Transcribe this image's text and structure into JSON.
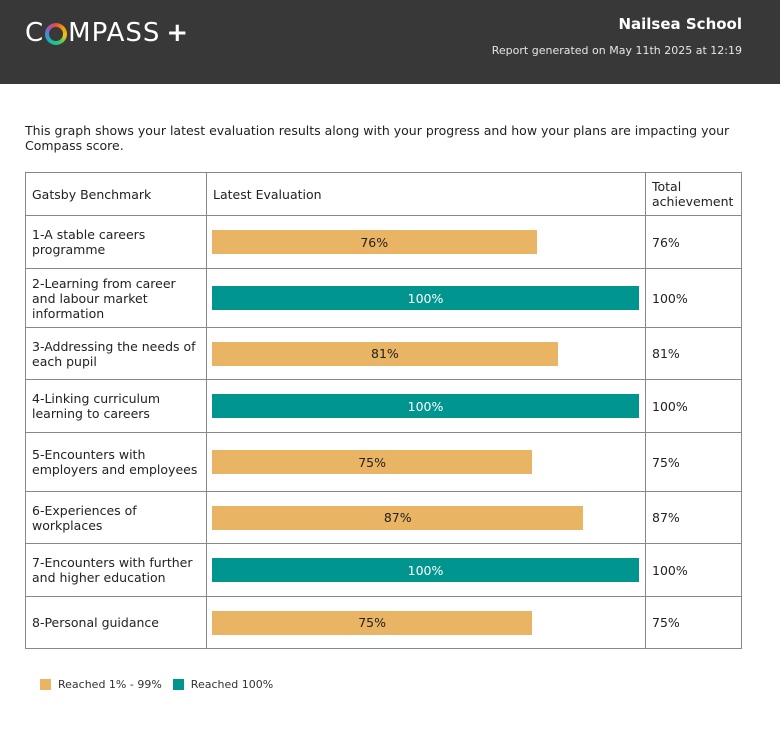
{
  "header": {
    "logo_text_a": "C",
    "logo_text_b": "MPASS",
    "logo_plus": "+",
    "school": "Nailsea School",
    "generated": "Report generated on May 11th 2025 at 12:19"
  },
  "intro": "This graph shows your latest evaluation results along with your progress and how your plans are impacting your Compass score.",
  "table": {
    "headers": [
      "Gatsby Benchmark",
      "Latest Evaluation",
      "Total achievement"
    ],
    "rows": [
      {
        "label": "1-A stable careers programme",
        "value": 76,
        "bar_label": "76%",
        "total": "76%"
      },
      {
        "label": "2-Learning from career and labour market information",
        "value": 100,
        "bar_label": "100%",
        "total": "100%"
      },
      {
        "label": "3-Addressing the needs of each pupil",
        "value": 81,
        "bar_label": "81%",
        "total": "81%"
      },
      {
        "label": "4-Linking curriculum learning to careers",
        "value": 100,
        "bar_label": "100%",
        "total": "100%"
      },
      {
        "label": "5-Encounters with employers and employees",
        "value": 75,
        "bar_label": "75%",
        "total": "75%"
      },
      {
        "label": "6-Experiences of workplaces",
        "value": 87,
        "bar_label": "87%",
        "total": "87%"
      },
      {
        "label": "7-Encounters with further and higher education",
        "value": 100,
        "bar_label": "100%",
        "total": "100%"
      },
      {
        "label": "8-Personal guidance",
        "value": 75,
        "bar_label": "75%",
        "total": "75%"
      }
    ]
  },
  "legend": [
    {
      "label": "Reached 1% - 99%",
      "color": "#e9b463"
    },
    {
      "label": "Reached 100%",
      "color": "#00958f"
    }
  ],
  "chart_data": {
    "type": "bar",
    "categories": [
      "1-A stable careers programme",
      "2-Learning from career and labour market information",
      "3-Addressing the needs of each pupil",
      "4-Linking curriculum learning to careers",
      "5-Encounters with employers and employees",
      "6-Experiences of workplaces",
      "7-Encounters with further and higher education",
      "8-Personal guidance"
    ],
    "values": [
      76,
      100,
      81,
      100,
      75,
      87,
      100,
      75
    ],
    "title": "",
    "xlabel": "",
    "ylabel": "",
    "ylim": [
      0,
      100
    ],
    "colors": {
      "partial": "#e9b463",
      "full": "#00958f"
    }
  }
}
